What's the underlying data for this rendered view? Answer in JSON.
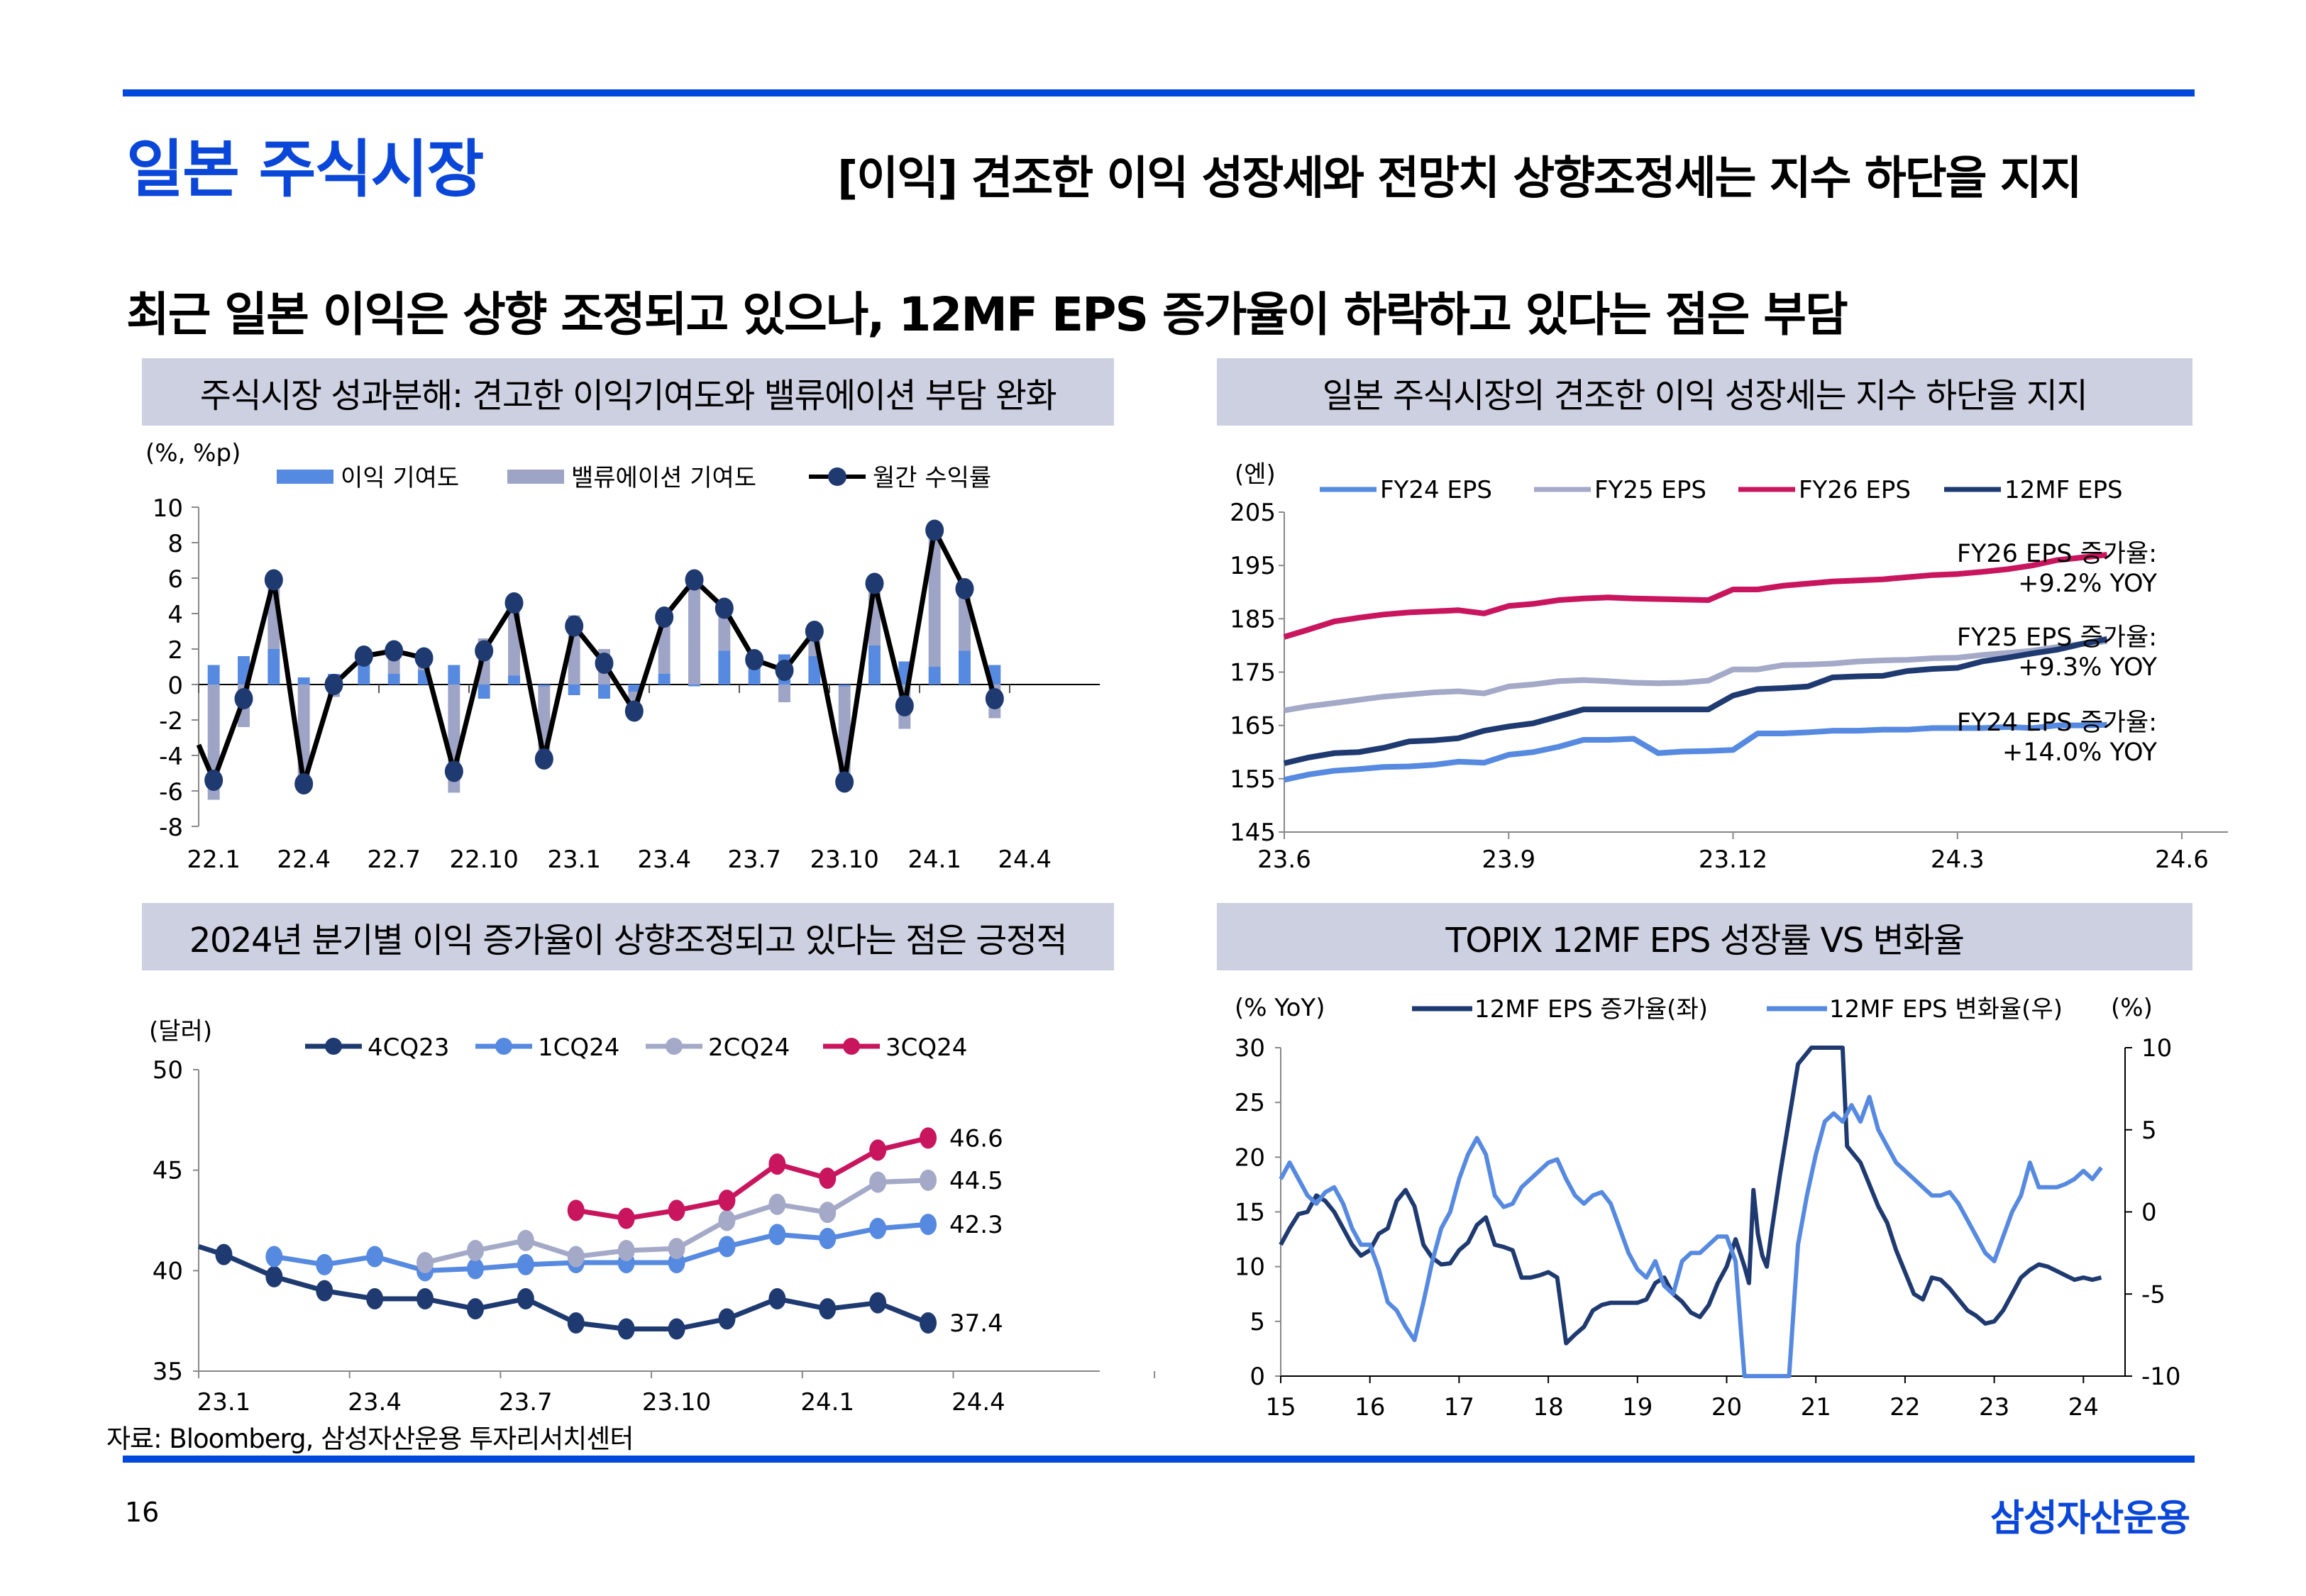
{
  "header": {
    "section_title": "일본 주식시장",
    "subtitle": "[이익] 견조한 이익 성장세와 전망치 상향조정세는 지수 하단을 지지",
    "headline": "최근 일본 이익은 상향 조정되고 있으나, 12MF EPS 증가율이 하락하고 있다는 점은 부담"
  },
  "colors": {
    "brand_blue": "#0a47d9",
    "panel_bg": "#cdd0e1",
    "bar_earnings": "#5689e0",
    "bar_valuation": "#9ea4c6",
    "navy": "#1f3a70",
    "light_blue": "#5689e0",
    "lavender": "#a4a9c8",
    "magenta": "#c8155e"
  },
  "panels": [
    {
      "title": "주식시장 성과분해: 견고한 이익기여도와 밸류에이션 부담 완화"
    },
    {
      "title": "일본 주식시장의 견조한 이익 성장세는 지수 하단을 지지"
    },
    {
      "title": "2024년 분기별 이익 증가율이 상향조정되고 있다는 점은 긍정적"
    },
    {
      "title": "TOPIX 12MF EPS 성장률 VS 변화율"
    }
  ],
  "chart_data": [
    {
      "type": "bar",
      "stacked": true,
      "title": "주식시장 성과분해: 견고한 이익기여도와 밸류에이션 부담 완화",
      "unit_label": "(%, %p)",
      "ylim": [
        -8,
        10
      ],
      "yticks": [
        10,
        8,
        6,
        4,
        2,
        0,
        -2,
        -4,
        -6,
        -8
      ],
      "xtick_labels": [
        "22.1",
        "22.4",
        "22.7",
        "22.10",
        "23.1",
        "23.4",
        "23.7",
        "23.10",
        "24.1",
        "24.4"
      ],
      "categories": [
        "22.1",
        "22.2",
        "22.3",
        "22.4",
        "22.5",
        "22.6",
        "22.7",
        "22.8",
        "22.9",
        "22.10",
        "22.11",
        "22.12",
        "23.1",
        "23.2",
        "23.3",
        "23.4",
        "23.5",
        "23.6",
        "23.7",
        "23.8",
        "23.9",
        "23.10",
        "23.11",
        "23.12",
        "24.1",
        "24.2",
        "24.3"
      ],
      "legend": [
        "이익 기여도",
        "밸류에이션 기여도",
        "월간 수익률"
      ],
      "series": [
        {
          "name": "이익 기여도",
          "kind": "bar",
          "values": [
            1.1,
            1.6,
            2.0,
            0.4,
            0.6,
            1.2,
            0.6,
            0.8,
            1.1,
            -0.8,
            0.5,
            -0.1,
            -0.6,
            -0.8,
            -0.4,
            0.6,
            -0.1,
            1.9,
            1.2,
            1.7,
            1.6,
            -0.1,
            2.2,
            1.3,
            1.0,
            1.9,
            1.1
          ]
        },
        {
          "name": "밸류에이션 기여도",
          "kind": "bar",
          "values": [
            -6.5,
            -2.4,
            3.9,
            -5.9,
            -0.7,
            0.4,
            1.4,
            0.7,
            -6.1,
            2.6,
            4.1,
            -4.2,
            3.9,
            2.0,
            -1.1,
            3.3,
            5.9,
            2.5,
            0.3,
            -1.0,
            1.4,
            -5.5,
            3.5,
            -2.5,
            7.7,
            3.5,
            -1.9
          ]
        },
        {
          "name": "월간 수익률",
          "kind": "line",
          "values": [
            -5.4,
            -0.8,
            5.9,
            -5.6,
            0.0,
            1.6,
            1.9,
            1.5,
            -4.9,
            1.9,
            4.6,
            -4.2,
            3.3,
            1.2,
            -1.5,
            3.8,
            5.9,
            4.3,
            1.4,
            0.8,
            3.0,
            -5.5,
            5.7,
            -1.2,
            8.7,
            5.4,
            -0.8
          ]
        }
      ],
      "line_start_value": -3.4
    },
    {
      "type": "line",
      "title": "일본 주식시장의 견조한 이익 성장세는 지수 하단을 지지",
      "unit_label": "(엔)",
      "ylim": [
        145,
        205
      ],
      "yticks": [
        205,
        195,
        185,
        175,
        165,
        155,
        145
      ],
      "xtick_labels": [
        "23.6",
        "23.9",
        "23.12",
        "24.3",
        "24.6"
      ],
      "x_range_months": [
        0,
        12
      ],
      "x": [
        0,
        0.33,
        0.67,
        1,
        1.33,
        1.67,
        2,
        2.33,
        2.67,
        3,
        3.33,
        3.67,
        4,
        4.33,
        4.67,
        5,
        5.33,
        5.67,
        6,
        6.33,
        6.67,
        7,
        7.33,
        7.67,
        8,
        8.33,
        8.67,
        9,
        9.33,
        9.67,
        10,
        10.33,
        10.67,
        11
      ],
      "series": [
        {
          "name": "FY24 EPS",
          "values": [
            154.8,
            155.8,
            156.5,
            156.8,
            157.2,
            157.3,
            157.6,
            158.2,
            158.0,
            159.5,
            160.0,
            161.0,
            162.3,
            162.3,
            162.5,
            159.8,
            160.1,
            160.2,
            160.4,
            163.5,
            163.5,
            163.7,
            164.0,
            164.0,
            164.2,
            164.2,
            164.5,
            164.5,
            164.5,
            164.7,
            164.5,
            165.0,
            165.0,
            165.1
          ]
        },
        {
          "name": "FY25 EPS",
          "values": [
            167.8,
            168.6,
            169.2,
            169.8,
            170.4,
            170.8,
            171.2,
            171.4,
            171.0,
            172.3,
            172.7,
            173.3,
            173.5,
            173.3,
            173.0,
            172.9,
            173.0,
            173.4,
            175.5,
            175.5,
            176.3,
            176.4,
            176.6,
            177.0,
            177.2,
            177.3,
            177.6,
            177.7,
            178.2,
            178.6,
            179.0,
            179.7,
            180.3,
            180.8
          ]
        },
        {
          "name": "FY26 EPS",
          "values": [
            181.6,
            183.0,
            184.5,
            185.2,
            185.8,
            186.2,
            186.4,
            186.6,
            186.0,
            187.4,
            187.8,
            188.5,
            188.8,
            189.0,
            188.8,
            188.7,
            188.6,
            188.5,
            190.5,
            190.5,
            191.2,
            191.6,
            192.0,
            192.2,
            192.4,
            192.8,
            193.2,
            193.4,
            193.8,
            194.3,
            195.0,
            196.0,
            196.5,
            197.0
          ]
        },
        {
          "name": "12MF EPS",
          "values": [
            157.9,
            159.0,
            159.8,
            160.0,
            160.8,
            162.0,
            162.2,
            162.6,
            164.0,
            164.8,
            165.4,
            166.7,
            168.0,
            168.0,
            168.0,
            168.0,
            168.0,
            168.0,
            170.6,
            171.8,
            172.0,
            172.3,
            174.0,
            174.2,
            174.3,
            175.2,
            175.6,
            175.8,
            177.0,
            177.7,
            178.5,
            179.2,
            180.3,
            181.2
          ]
        }
      ],
      "annotations": [
        {
          "text1": "FY26 EPS 증가율:",
          "text2": "+9.2% YOY",
          "series": "FY26 EPS"
        },
        {
          "text1": "FY25 EPS 증가율:",
          "text2": "+9.3% YOY",
          "series": "FY25 EPS"
        },
        {
          "text1": "FY24 EPS 증가율:",
          "text2": "+14.0% YOY",
          "series": "FY24 EPS"
        }
      ]
    },
    {
      "type": "line",
      "title": "2024년 분기별 이익 증가율이 상향조정되고 있다는 점은 긍정적",
      "unit_label": "(달러)",
      "ylim": [
        35,
        50
      ],
      "yticks": [
        50,
        45,
        40,
        35
      ],
      "xtick_labels": [
        "23.1",
        "23.4",
        "23.7",
        "23.10",
        "24.1",
        "24.4"
      ],
      "x_range_months": [
        0,
        18
      ],
      "series": [
        {
          "name": "4CQ23",
          "start_month": 0,
          "values": [
            40.8,
            39.7,
            39.0,
            38.6,
            38.6,
            38.1,
            38.6,
            37.4,
            37.1,
            37.1,
            37.6,
            38.6,
            38.1,
            38.4,
            37.4
          ]
        },
        {
          "name": "1CQ24",
          "start_month": 1,
          "values": [
            40.7,
            40.3,
            40.7,
            40.0,
            40.1,
            40.3,
            40.4,
            40.4,
            40.4,
            41.2,
            41.8,
            41.6,
            42.1,
            42.3
          ]
        },
        {
          "name": "2CQ24",
          "start_month": 4,
          "values": [
            40.4,
            41.0,
            41.5,
            40.7,
            41.0,
            41.1,
            42.5,
            43.3,
            42.9,
            44.4,
            44.5
          ]
        },
        {
          "name": "3CQ24",
          "start_month": 7,
          "values": [
            43.0,
            42.6,
            43.0,
            43.5,
            45.3,
            44.6,
            46.0,
            46.6
          ]
        }
      ],
      "line_start_value": 41.2,
      "end_labels": [
        "37.4",
        "42.3",
        "44.5",
        "46.6"
      ]
    },
    {
      "type": "line",
      "dual_axis": true,
      "title": "TOPIX 12MF EPS 성장률 VS 변화율",
      "left_unit_label": "(% YoY)",
      "right_unit_label": "(%)",
      "ylim_left": [
        0,
        30
      ],
      "ylim_right": [
        -10,
        10
      ],
      "yticks_left": [
        30,
        25,
        20,
        15,
        10,
        5,
        0
      ],
      "yticks_right": [
        10,
        5,
        0,
        -5,
        -10
      ],
      "xtick_labels": [
        "15",
        "16",
        "17",
        "18",
        "19",
        "20",
        "21",
        "22",
        "23",
        "24"
      ],
      "x_range_years": [
        2015,
        2025
      ],
      "series": [
        {
          "name": "12MF EPS 증가율(좌)",
          "axis": "left",
          "x": [
            2015.0,
            2015.1,
            2015.2,
            2015.3,
            2015.4,
            2015.5,
            2015.6,
            2015.7,
            2015.8,
            2015.9,
            2016.0,
            2016.1,
            2016.2,
            2016.3,
            2016.4,
            2016.5,
            2016.6,
            2016.7,
            2016.8,
            2016.9,
            2017.0,
            2017.1,
            2017.2,
            2017.3,
            2017.4,
            2017.5,
            2017.6,
            2017.7,
            2017.8,
            2017.9,
            2018.0,
            2018.1,
            2018.2,
            2018.3,
            2018.4,
            2018.5,
            2018.6,
            2018.7,
            2018.8,
            2018.9,
            2019.0,
            2019.1,
            2019.2,
            2019.3,
            2019.4,
            2019.5,
            2019.6,
            2019.7,
            2019.8,
            2019.9,
            2020.0,
            2020.1,
            2020.2,
            2020.25,
            2020.3,
            2020.35,
            2020.4,
            2020.45,
            2020.5,
            2020.6,
            2020.7,
            2020.8,
            2020.9,
            2020.95,
            2021.0,
            2021.1,
            2021.2,
            2021.3,
            2021.35,
            2021.4,
            2021.5,
            2021.6,
            2021.7,
            2021.8,
            2021.9,
            2022.0,
            2022.1,
            2022.2,
            2022.3,
            2022.4,
            2022.5,
            2022.6,
            2022.7,
            2022.8,
            2022.9,
            2023.0,
            2023.1,
            2023.2,
            2023.3,
            2023.4,
            2023.5,
            2023.6,
            2023.7,
            2023.8,
            2023.9,
            2024.0,
            2024.1,
            2024.2
          ],
          "values": [
            12.0,
            13.5,
            14.8,
            15.0,
            16.5,
            16.0,
            15.0,
            13.5,
            12.0,
            11.0,
            11.5,
            13.0,
            13.5,
            16.0,
            17.0,
            15.5,
            12.0,
            10.8,
            10.2,
            10.3,
            11.5,
            12.2,
            13.8,
            14.5,
            12.0,
            11.8,
            11.5,
            9.0,
            9.0,
            9.2,
            9.5,
            9.0,
            3.0,
            3.8,
            4.5,
            6.0,
            6.5,
            6.7,
            6.7,
            6.7,
            6.7,
            7.0,
            8.5,
            9.0,
            7.5,
            6.8,
            5.8,
            5.4,
            6.5,
            8.5,
            10.0,
            12.5,
            10.0,
            8.5,
            17.0,
            13.0,
            11.0,
            10.0,
            13.0,
            18.5,
            23.5,
            28.5,
            29.5,
            30.0,
            30.0,
            30.0,
            30.0,
            30.0,
            21.0,
            20.5,
            19.5,
            17.5,
            15.5,
            14.0,
            11.5,
            9.5,
            7.5,
            7.0,
            9.0,
            8.8,
            8.0,
            7.0,
            6.0,
            5.5,
            4.8,
            5.0,
            6.0,
            7.5,
            9.0,
            9.7,
            10.2,
            10.0,
            9.6,
            9.2,
            8.8,
            9.0,
            8.8,
            9.0
          ]
        },
        {
          "name": "12MF EPS 변화율(우)",
          "axis": "right",
          "x": [
            2015.0,
            2015.1,
            2015.2,
            2015.3,
            2015.4,
            2015.5,
            2015.6,
            2015.7,
            2015.8,
            2015.9,
            2016.0,
            2016.1,
            2016.2,
            2016.3,
            2016.4,
            2016.5,
            2016.6,
            2016.7,
            2016.8,
            2016.9,
            2017.0,
            2017.1,
            2017.2,
            2017.3,
            2017.4,
            2017.5,
            2017.6,
            2017.7,
            2017.8,
            2017.9,
            2018.0,
            2018.1,
            2018.2,
            2018.3,
            2018.4,
            2018.5,
            2018.6,
            2018.7,
            2018.8,
            2018.9,
            2019.0,
            2019.1,
            2019.2,
            2019.3,
            2019.4,
            2019.5,
            2019.6,
            2019.7,
            2019.8,
            2019.9,
            2020.0,
            2020.1,
            2020.2,
            2020.25,
            2020.3,
            2020.35,
            2020.7,
            2020.75,
            2020.8,
            2020.9,
            2021.0,
            2021.1,
            2021.2,
            2021.3,
            2021.4,
            2021.5,
            2021.6,
            2021.7,
            2021.8,
            2021.9,
            2022.0,
            2022.1,
            2022.2,
            2022.3,
            2022.4,
            2022.5,
            2022.6,
            2022.7,
            2022.8,
            2022.9,
            2023.0,
            2023.1,
            2023.2,
            2023.3,
            2023.4,
            2023.5,
            2023.6,
            2023.7,
            2023.8,
            2023.9,
            2024.0,
            2024.1,
            2024.2
          ],
          "values": [
            2.0,
            3.0,
            2.0,
            1.0,
            0.5,
            1.2,
            1.5,
            0.5,
            -1.0,
            -2.0,
            -2.0,
            -3.5,
            -5.5,
            -6.0,
            -7.0,
            -7.8,
            -5.5,
            -3.0,
            -1.0,
            0.0,
            2.0,
            3.5,
            4.5,
            3.5,
            1.0,
            0.3,
            0.5,
            1.5,
            2.0,
            2.5,
            3.0,
            3.2,
            2.0,
            1.0,
            0.5,
            1.0,
            1.2,
            0.5,
            -1.0,
            -2.5,
            -3.5,
            -4.0,
            -3.0,
            -4.5,
            -5.0,
            -3.0,
            -2.5,
            -2.5,
            -2.0,
            -1.5,
            -1.5,
            -3.0,
            -10.0,
            -10.0,
            -10.0,
            -10.0,
            -10.0,
            -6.0,
            -2.0,
            1.0,
            3.5,
            5.5,
            6.0,
            5.5,
            6.5,
            5.5,
            7.0,
            5.0,
            4.0,
            3.0,
            2.5,
            2.0,
            1.5,
            1.0,
            1.0,
            1.2,
            0.5,
            -0.5,
            -1.5,
            -2.5,
            -3.0,
            -1.5,
            0.0,
            1.0,
            3.0,
            1.5,
            1.5,
            1.5,
            1.7,
            2.0,
            2.5,
            2.0,
            2.7
          ]
        }
      ]
    }
  ],
  "charts_text": {
    "c1": {
      "unit": "(%, %p)",
      "legend": [
        "이익 기여도",
        "밸류에이션 기여도",
        "월간 수익률"
      ]
    },
    "c2": {
      "unit": "(엔)",
      "legend": [
        "FY24 EPS",
        "FY25 EPS",
        "FY26 EPS",
        "12MF EPS"
      ]
    },
    "c3": {
      "unit": "(달러)",
      "legend": [
        "4CQ23",
        "1CQ24",
        "2CQ24",
        "3CQ24"
      ]
    },
    "c4": {
      "unit_left": "(% YoY)",
      "unit_right": "(%)",
      "legend": [
        "12MF EPS 증가율(좌)",
        "12MF EPS 변화율(우)"
      ]
    }
  },
  "footer": {
    "source": "자료: Bloomberg, 삼성자산운용 투자리서치센터",
    "page_number": "16",
    "brand": "삼성자산운용"
  }
}
